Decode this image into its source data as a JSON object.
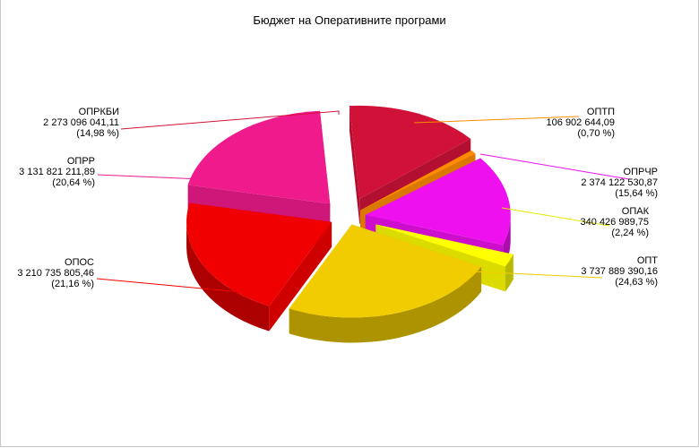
{
  "chart_data": {
    "type": "pie",
    "title": "Бюджет на Оперативните програми",
    "slices": [
      {
        "name": "ОПРКБИ",
        "value": "2 273 096 041,11",
        "percent": "(14,98 %)",
        "color": "#d01238"
      },
      {
        "name": "ОПТП",
        "value": "106 902 644,09",
        "percent": "(0,70 %)",
        "color": "#ff8c00"
      },
      {
        "name": "ОПРЧР",
        "value": "2 374 122 530,87",
        "percent": "(15,64 %)",
        "color": "#ee10ee"
      },
      {
        "name": "ОПАК",
        "value": "340 426 989,75",
        "percent": "(2,24 %)",
        "color": "#ffff00"
      },
      {
        "name": "ОПТ",
        "value": "3 737 889 390,16",
        "percent": "(24,63 %)",
        "color": "#f0cc00"
      },
      {
        "name": "ОПОС",
        "value": "3 210 735 805,46",
        "percent": "(21,16 %)",
        "color": "#f00000"
      },
      {
        "name": "ОПРР",
        "value": "3 131 821 211,89",
        "percent": "(20,64 %)",
        "color": "#ef1b8d"
      }
    ]
  }
}
